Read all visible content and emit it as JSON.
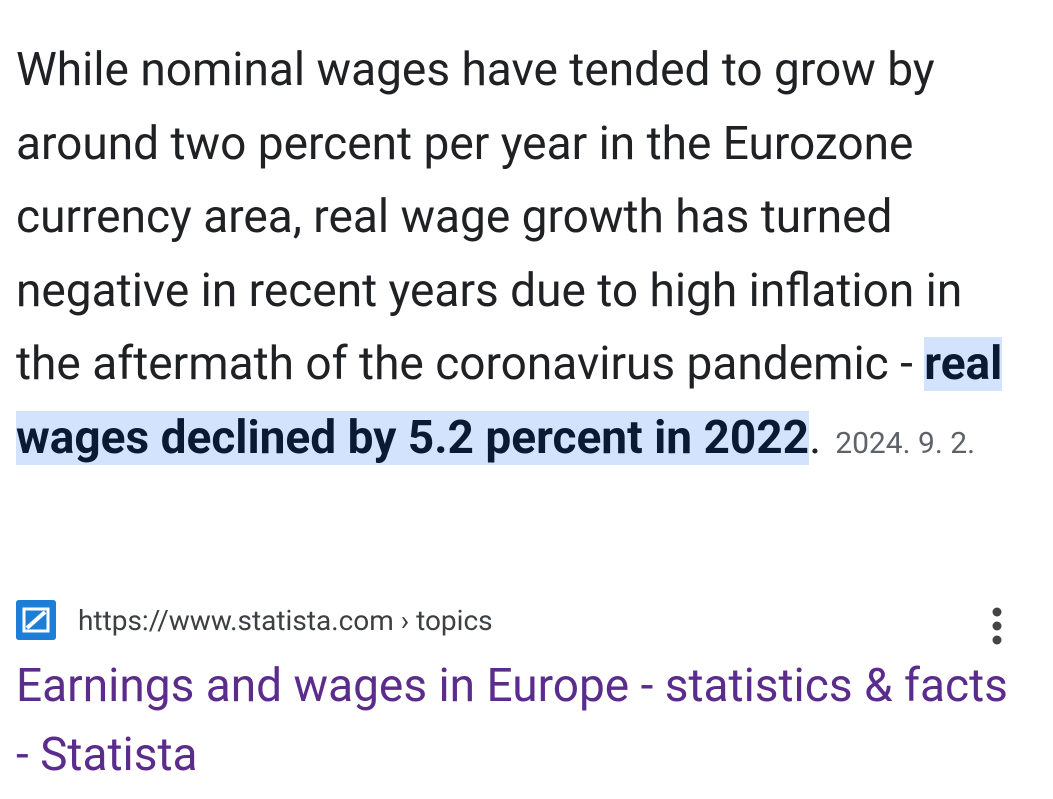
{
  "snippet": {
    "text": "While nominal wages have tended to grow by around two percent per year in the Eurozone currency area, real wage growth has turned negative in recent years due to high inflation in the aftermath of the coronavirus pandemic - ",
    "highlight": "real wages declined by 5.2 percent in 2022",
    "end": ".",
    "date": "2024. 9. 2."
  },
  "source": {
    "url": "https://www.statista.com › topics"
  },
  "result": {
    "title": "Earnings and wages in Europe - statistics & facts - Statista"
  }
}
